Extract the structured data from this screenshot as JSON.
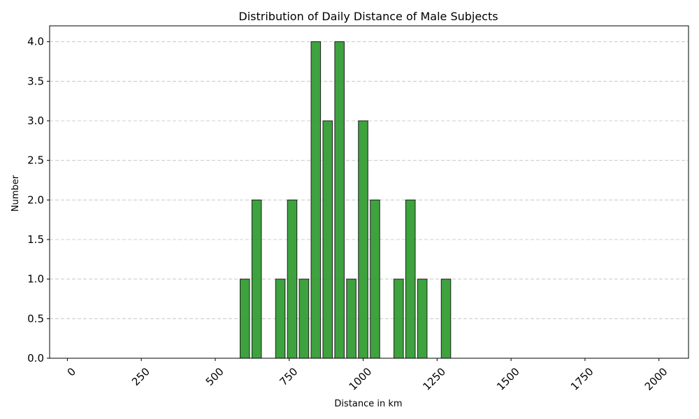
{
  "chart_data": {
    "type": "bar",
    "title": "Distribution of Daily Distance of Male Subjects",
    "xlabel": "Distance in km",
    "ylabel": "Number",
    "xlim": [
      -60,
      2100
    ],
    "ylim": [
      0,
      4.2
    ],
    "bin_width": 40,
    "x_ticks": [
      0,
      250,
      500,
      750,
      1000,
      1250,
      1500,
      1750,
      2000
    ],
    "x_tick_labels": [
      "0",
      "250",
      "500",
      "750",
      "1000",
      "1250",
      "1500",
      "1750",
      "2000"
    ],
    "y_ticks": [
      0,
      0.5,
      1,
      1.5,
      2,
      2.5,
      3,
      3.5,
      4
    ],
    "y_tick_labels": [
      "0.0",
      "0.5",
      "1.0",
      "1.5",
      "2.0",
      "2.5",
      "3.0",
      "3.5",
      "4.0"
    ],
    "grid": "y",
    "bar_color": "#2e9a2e",
    "x": [
      0,
      40,
      80,
      120,
      160,
      200,
      240,
      280,
      320,
      360,
      400,
      440,
      480,
      520,
      560,
      600,
      640,
      680,
      720,
      760,
      800,
      840,
      880,
      920,
      960,
      1000,
      1040,
      1080,
      1120,
      1160,
      1200,
      1240,
      1280,
      1320,
      1360,
      1400,
      1440,
      1480,
      1520,
      1560,
      1600,
      1640,
      1680,
      1720,
      1760,
      1800,
      1840,
      1880,
      1920,
      1960,
      2000
    ],
    "values": [
      0,
      0,
      0,
      0,
      0,
      0,
      0,
      0,
      0,
      0,
      0,
      0,
      0,
      0,
      0,
      1,
      2,
      0,
      1,
      2,
      1,
      4,
      3,
      4,
      1,
      3,
      2,
      0,
      1,
      2,
      1,
      0,
      1,
      0,
      0,
      0,
      0,
      0,
      0,
      0,
      0,
      0,
      0,
      0,
      0,
      0,
      0,
      0,
      0,
      0,
      0
    ]
  }
}
